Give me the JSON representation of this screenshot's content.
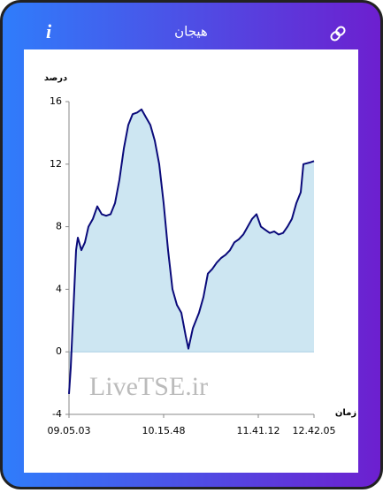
{
  "header": {
    "title": "هیجان"
  },
  "chart_data": {
    "type": "area",
    "ylabel": "درصد",
    "xlabel": "زمان",
    "annotation": "LiveTSE.ir",
    "x": [
      0,
      2,
      4,
      6,
      8,
      10,
      14,
      18,
      22,
      27,
      32,
      37,
      42,
      47,
      52,
      57,
      62,
      67,
      72,
      77,
      82,
      87,
      92,
      97,
      102,
      107,
      112,
      117,
      122,
      127,
      132,
      135,
      140,
      147,
      152,
      157,
      162,
      167,
      172,
      177,
      182,
      187,
      192,
      197,
      202,
      207,
      212,
      217,
      222,
      227,
      232,
      237,
      242,
      247,
      252,
      257,
      262,
      265,
      272,
      277
    ],
    "values": [
      -2.7,
      -1,
      1.5,
      4,
      6.5,
      7.3,
      6.5,
      7,
      8,
      8.5,
      9.3,
      8.8,
      8.7,
      8.8,
      9.5,
      11,
      13,
      14.5,
      15.2,
      15.3,
      15.5,
      15,
      14.5,
      13.5,
      12,
      9.5,
      6.5,
      4,
      3,
      2.5,
      1,
      0.2,
      1.5,
      2.5,
      3.5,
      5,
      5.3,
      5.7,
      6,
      6.2,
      6.5,
      7,
      7.2,
      7.5,
      8,
      8.5,
      8.8,
      8,
      7.8,
      7.6,
      7.7,
      7.5,
      7.6,
      8,
      8.5,
      9.5,
      10.2,
      12,
      12.1,
      12.2
    ],
    "color": "#0a0a7a",
    "fill": "#cde6f2",
    "xlim": [
      0,
      277
    ],
    "xticks": [
      {
        "value": 0,
        "label": "09.05.03"
      },
      {
        "value": 107,
        "label": "10.15.48"
      },
      {
        "value": 214,
        "label": "11.41.12"
      },
      {
        "value": 277,
        "label": "12.42.05"
      }
    ],
    "ylim": [
      -4,
      16
    ],
    "yticks": [
      -4,
      0,
      4,
      8,
      12,
      16
    ]
  }
}
